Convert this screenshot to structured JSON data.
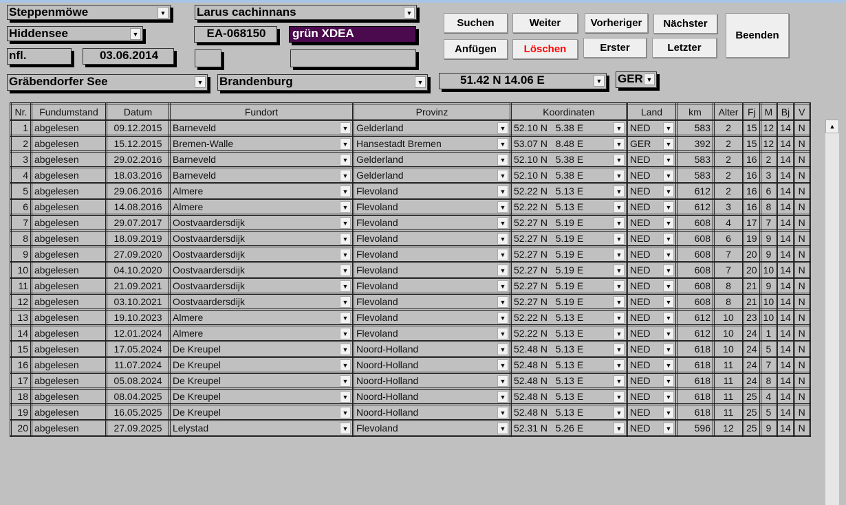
{
  "header": {
    "species_de": "Steppenmöwe",
    "species_lat": "Larus cachinnans",
    "station": "Hiddensee",
    "ring_number": "EA-068150",
    "color_ring": "grün  XDEA",
    "color_ring_bg": "#4b0a4e",
    "age_code": "nfl.",
    "ring_date": "03.06.2014",
    "extra1": "",
    "extra2": "",
    "ring_place": "Gräbendorfer See",
    "ring_province": "Brandenburg",
    "ring_coords": "51.42 N  14.06 E",
    "ring_country": "GER"
  },
  "buttons": {
    "search": "Suchen",
    "next_find": "Weiter",
    "previous": "Vorheriger",
    "next": "Nächster",
    "append": "Anfügen",
    "delete": "Löschen",
    "first": "Erster",
    "last": "Letzter",
    "exit": "Beenden",
    "delete_color": "#ff0000"
  },
  "table": {
    "columns": [
      "Nr.",
      "Fundumstand",
      "Datum",
      "Fundort",
      "Provinz",
      "Koordinaten",
      "Land",
      "km",
      "Alter",
      "Fj",
      "M",
      "Bj",
      "V"
    ],
    "rows": [
      [
        "1",
        "abgelesen",
        "09.12.2015",
        "Barneveld",
        "Gelderland",
        "52.10 N   5.38 E",
        "NED",
        "583",
        "2",
        "15",
        "12",
        "14",
        "N"
      ],
      [
        "2",
        "abgelesen",
        "15.12.2015",
        "Bremen-Walle",
        "Hansestadt Bremen",
        "53.07 N   8.48 E",
        "GER",
        "392",
        "2",
        "15",
        "12",
        "14",
        "N"
      ],
      [
        "3",
        "abgelesen",
        "29.02.2016",
        "Barneveld",
        "Gelderland",
        "52.10 N   5.38 E",
        "NED",
        "583",
        "2",
        "16",
        "2",
        "14",
        "N"
      ],
      [
        "4",
        "abgelesen",
        "18.03.2016",
        "Barneveld",
        "Gelderland",
        "52.10 N   5.38 E",
        "NED",
        "583",
        "2",
        "16",
        "3",
        "14",
        "N"
      ],
      [
        "5",
        "abgelesen",
        "29.06.2016",
        "Almere",
        "Flevoland",
        "52.22 N   5.13 E",
        "NED",
        "612",
        "2",
        "16",
        "6",
        "14",
        "N"
      ],
      [
        "6",
        "abgelesen",
        "14.08.2016",
        "Almere",
        "Flevoland",
        "52.22 N   5.13 E",
        "NED",
        "612",
        "3",
        "16",
        "8",
        "14",
        "N"
      ],
      [
        "7",
        "abgelesen",
        "29.07.2017",
        "Oostvaardersdijk",
        "Flevoland",
        "52.27 N   5.19 E",
        "NED",
        "608",
        "4",
        "17",
        "7",
        "14",
        "N"
      ],
      [
        "8",
        "abgelesen",
        "18.09.2019",
        "Oostvaardersdijk",
        "Flevoland",
        "52.27 N   5.19 E",
        "NED",
        "608",
        "6",
        "19",
        "9",
        "14",
        "N"
      ],
      [
        "9",
        "abgelesen",
        "27.09.2020",
        "Oostvaardersdijk",
        "Flevoland",
        "52.27 N   5.19 E",
        "NED",
        "608",
        "7",
        "20",
        "9",
        "14",
        "N"
      ],
      [
        "10",
        "abgelesen",
        "04.10.2020",
        "Oostvaardersdijk",
        "Flevoland",
        "52.27 N   5.19 E",
        "NED",
        "608",
        "7",
        "20",
        "10",
        "14",
        "N"
      ],
      [
        "11",
        "abgelesen",
        "21.09.2021",
        "Oostvaardersdijk",
        "Flevoland",
        "52.27 N   5.19 E",
        "NED",
        "608",
        "8",
        "21",
        "9",
        "14",
        "N"
      ],
      [
        "12",
        "abgelesen",
        "03.10.2021",
        "Oostvaardersdijk",
        "Flevoland",
        "52.27 N   5.19 E",
        "NED",
        "608",
        "8",
        "21",
        "10",
        "14",
        "N"
      ],
      [
        "13",
        "abgelesen",
        "19.10.2023",
        "Almere",
        "Flevoland",
        "52.22 N   5.13 E",
        "NED",
        "612",
        "10",
        "23",
        "10",
        "14",
        "N"
      ],
      [
        "14",
        "abgelesen",
        "12.01.2024",
        "Almere",
        "Flevoland",
        "52.22 N   5.13 E",
        "NED",
        "612",
        "10",
        "24",
        "1",
        "14",
        "N"
      ],
      [
        "15",
        "abgelesen",
        "17.05.2024",
        "De Kreupel",
        "Noord-Holland",
        "52.48 N   5.13 E",
        "NED",
        "618",
        "10",
        "24",
        "5",
        "14",
        "N"
      ],
      [
        "16",
        "abgelesen",
        "11.07.2024",
        "De Kreupel",
        "Noord-Holland",
        "52.48 N   5.13 E",
        "NED",
        "618",
        "11",
        "24",
        "7",
        "14",
        "N"
      ],
      [
        "17",
        "abgelesen",
        "05.08.2024",
        "De Kreupel",
        "Noord-Holland",
        "52.48 N   5.13 E",
        "NED",
        "618",
        "11",
        "24",
        "8",
        "14",
        "N"
      ],
      [
        "18",
        "abgelesen",
        "08.04.2025",
        "De Kreupel",
        "Noord-Holland",
        "52.48 N   5.13 E",
        "NED",
        "618",
        "11",
        "25",
        "4",
        "14",
        "N"
      ],
      [
        "19",
        "abgelesen",
        "16.05.2025",
        "De Kreupel",
        "Noord-Holland",
        "52.48 N   5.13 E",
        "NED",
        "618",
        "11",
        "25",
        "5",
        "14",
        "N"
      ],
      [
        "20",
        "abgelesen",
        "27.09.2025",
        "Lelystad",
        "Flevoland",
        "52.31 N   5.26 E",
        "NED",
        "596",
        "12",
        "25",
        "9",
        "14",
        "N"
      ]
    ]
  }
}
